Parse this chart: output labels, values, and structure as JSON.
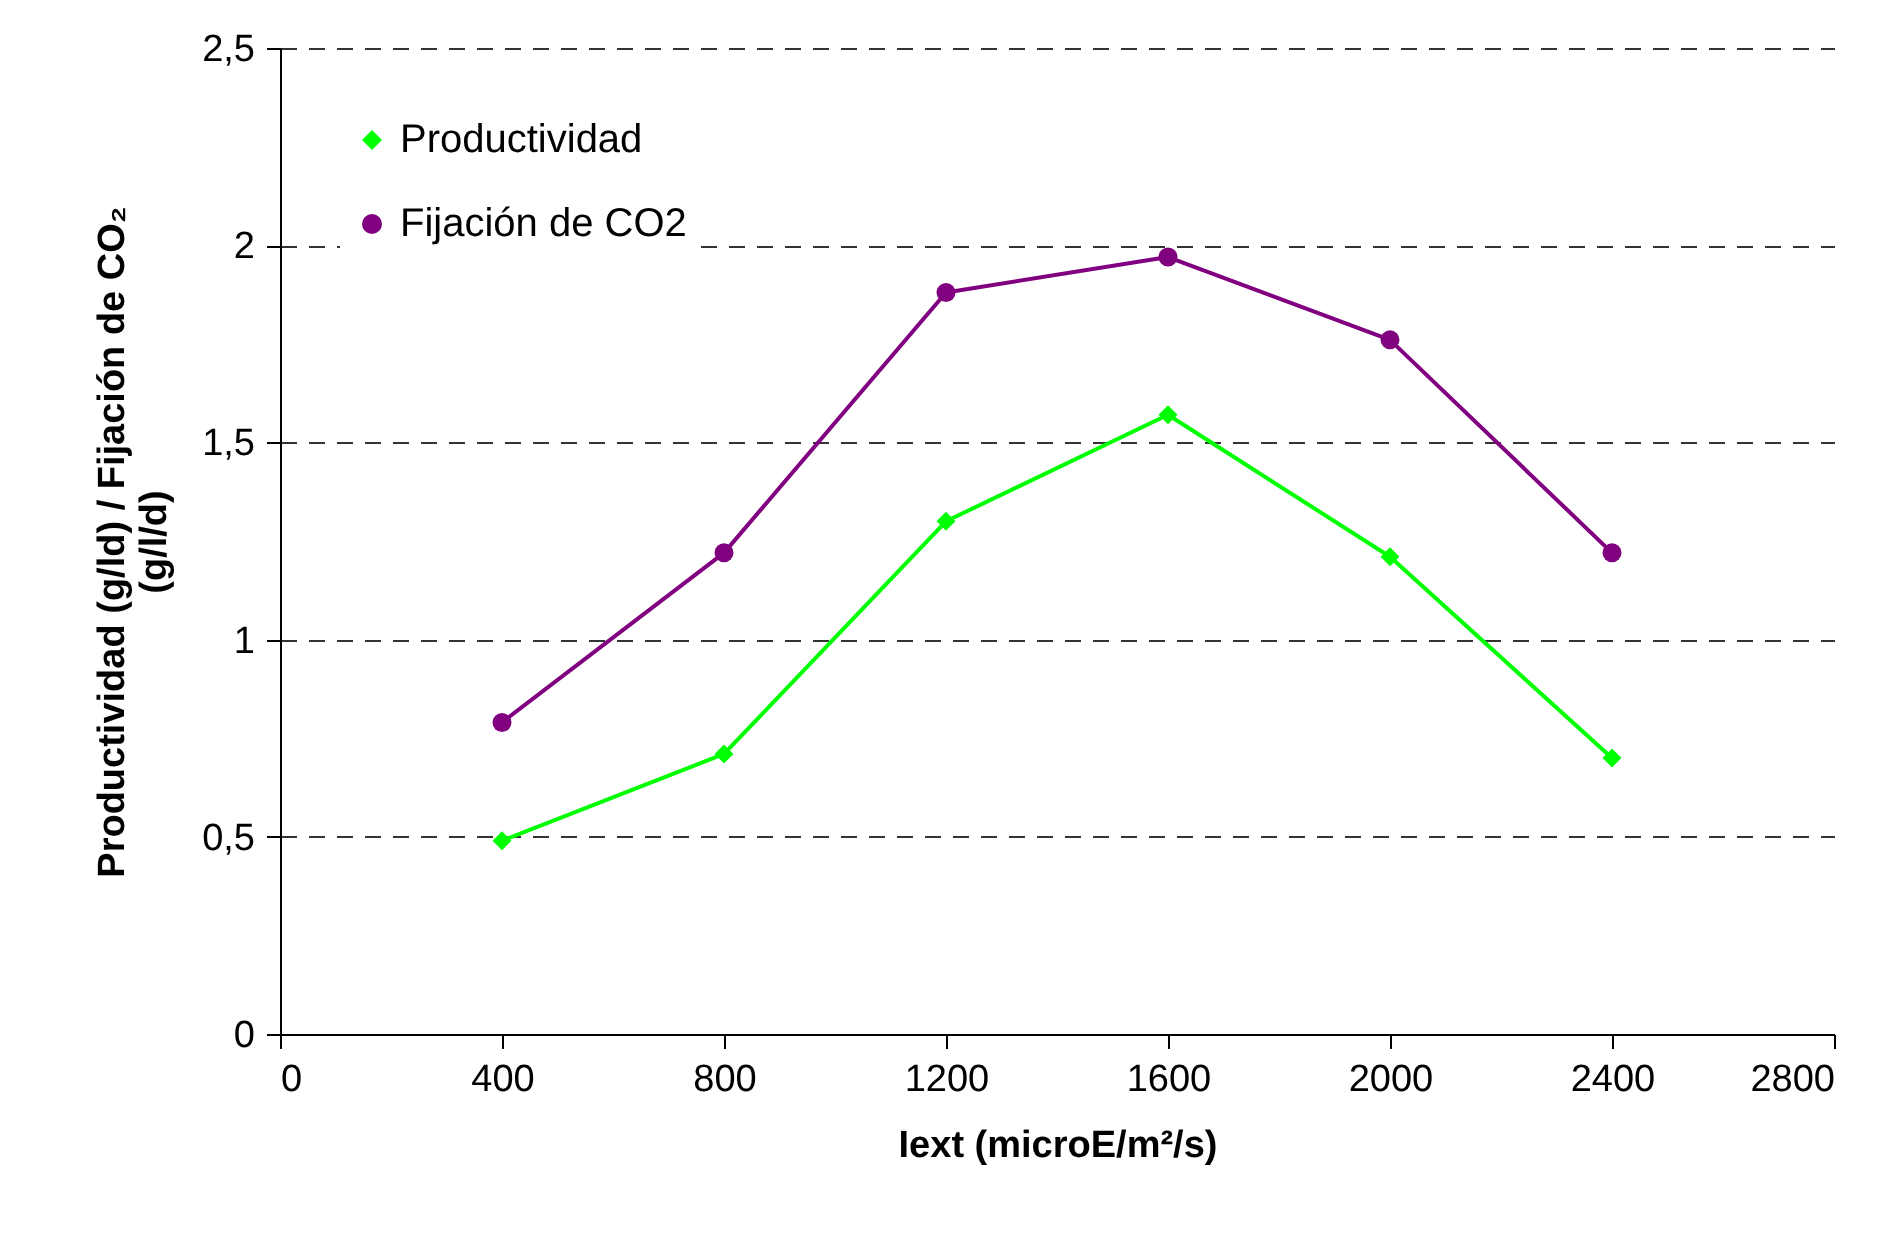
{
  "chart_data": {
    "type": "line",
    "xlabel": "Iext (microE/m²/s)",
    "ylabel": "Productividad (g/ld) / Fijación de CO₂ (g/l/d)",
    "x": [
      400,
      800,
      1200,
      1600,
      2000,
      2400
    ],
    "series": [
      {
        "name": "Productividad",
        "color": "#00ff00",
        "marker": "diamond",
        "values": [
          0.49,
          0.71,
          1.3,
          1.57,
          1.21,
          0.7
        ]
      },
      {
        "name": "Fijación de CO2",
        "color": "#800080",
        "marker": "circle",
        "values": [
          0.79,
          1.22,
          1.88,
          1.97,
          1.76,
          1.22
        ]
      }
    ],
    "xlim": [
      0,
      2800
    ],
    "xticks": [
      0,
      400,
      800,
      1200,
      1600,
      2000,
      2400,
      2800
    ],
    "ylim": [
      0,
      2.5
    ],
    "yticks": [
      0,
      {
        "value": 0.5,
        "label": "0,5"
      },
      1,
      {
        "value": 1.5,
        "label": "1,5"
      },
      2,
      {
        "value": 2.5,
        "label": "2,5"
      }
    ],
    "grid": "y",
    "legend": "top left"
  }
}
